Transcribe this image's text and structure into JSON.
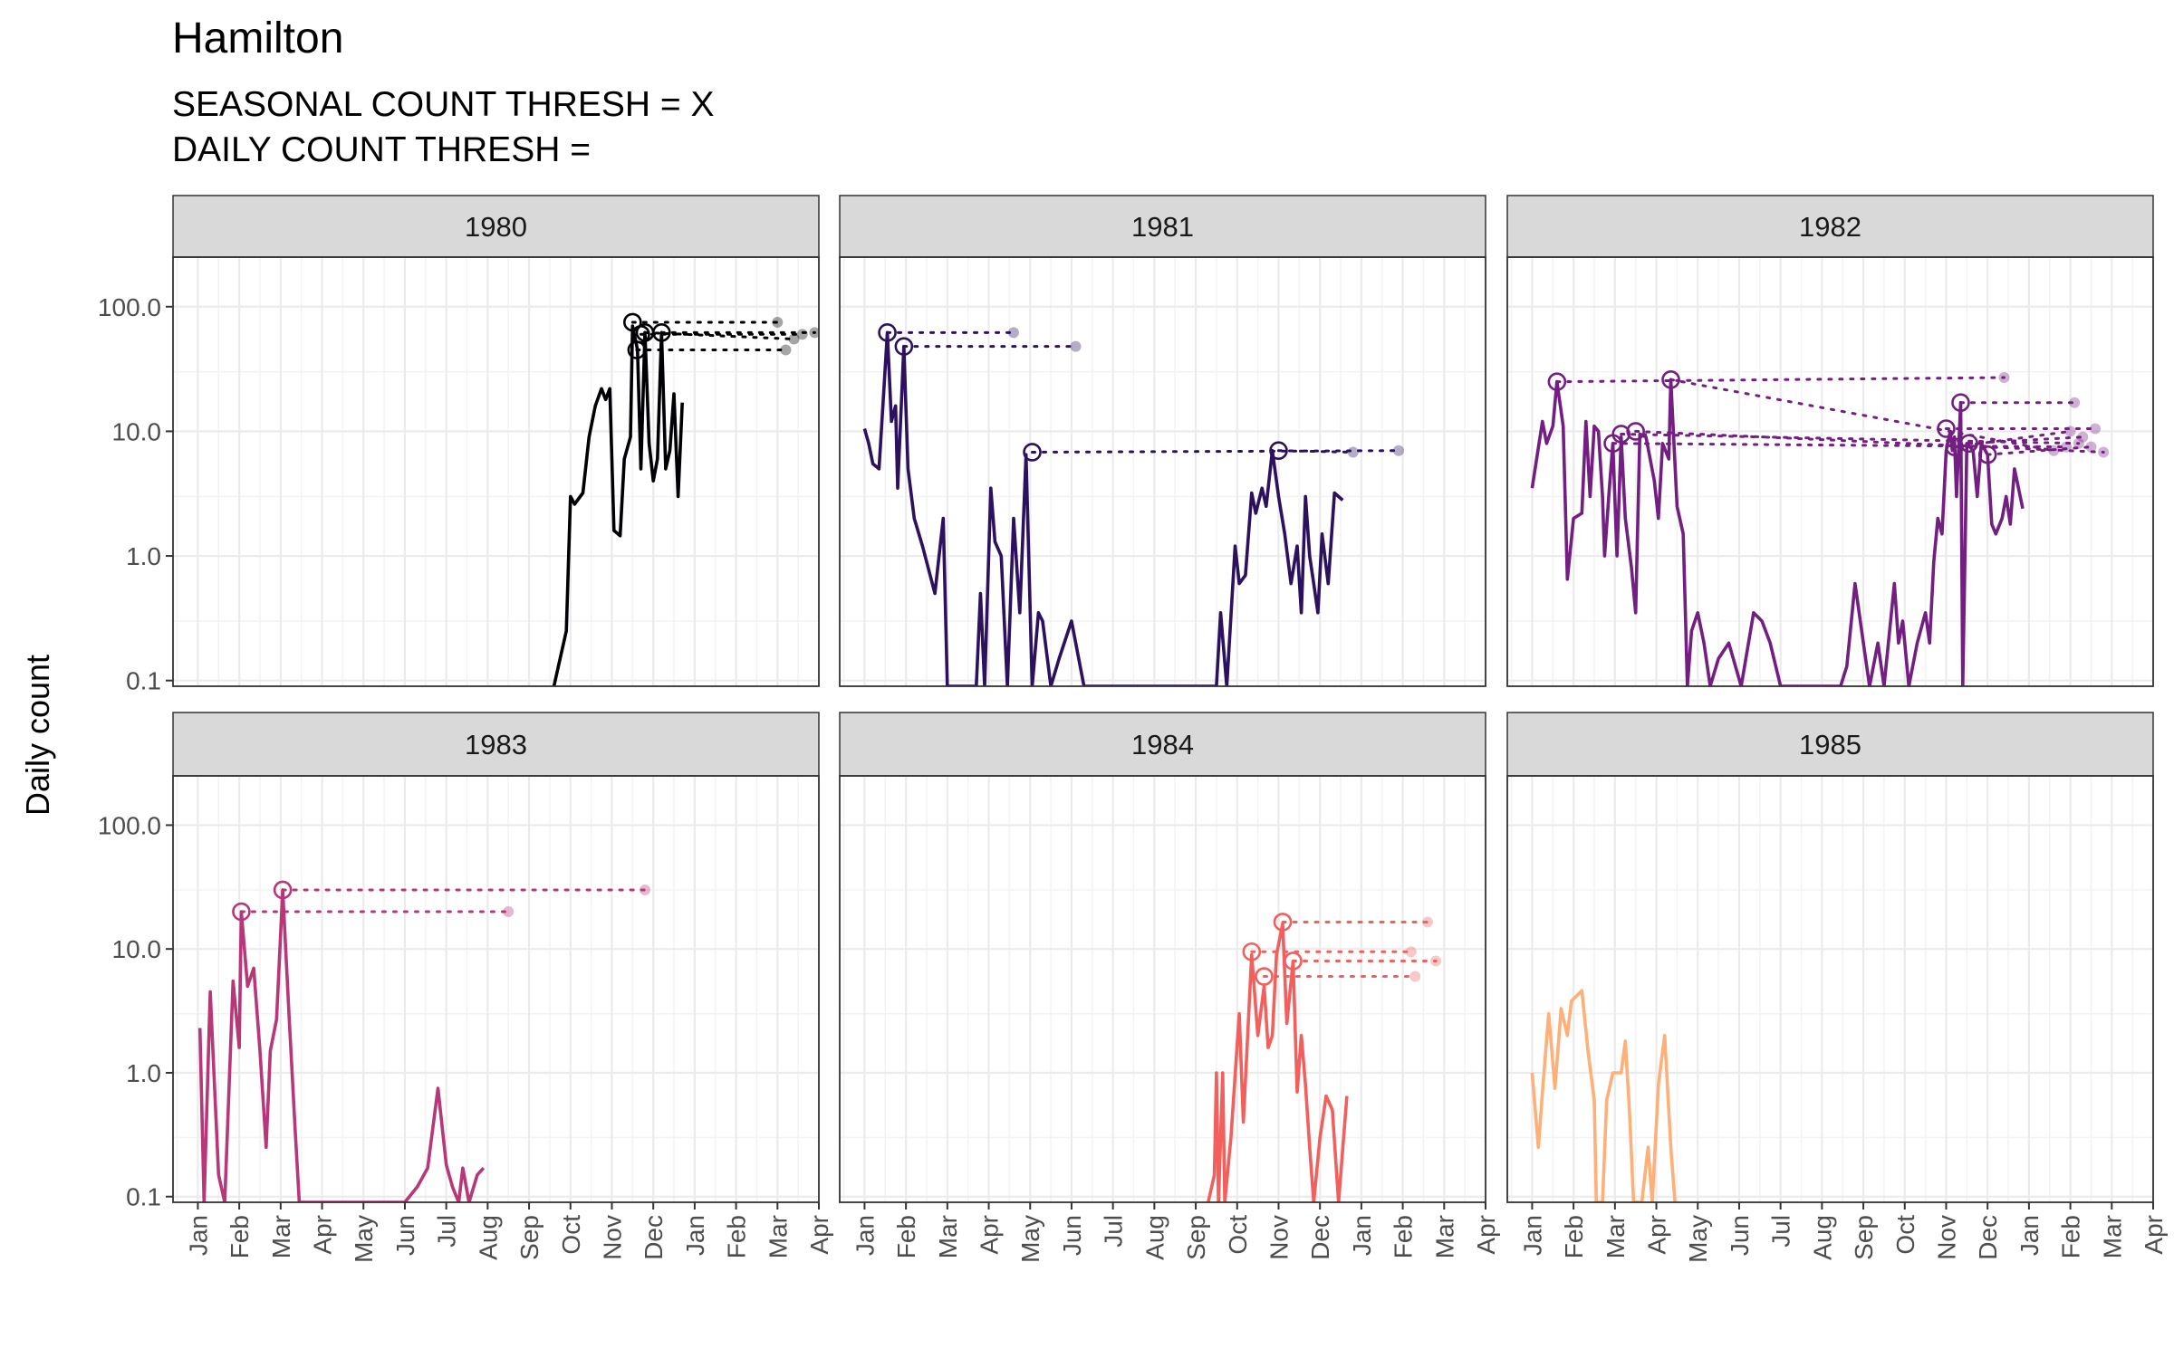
{
  "chart_data": {
    "type": "line",
    "title": "Hamilton",
    "subtitle_lines": [
      "SEASONAL COUNT THRESH = X",
      "DAILY COUNT THRESH ="
    ],
    "ylabel": "Daily count",
    "xlabel": "",
    "y_scale": "log10",
    "ylim": [
      0.09,
      250
    ],
    "y_ticks": [
      0.1,
      1.0,
      10.0,
      100.0
    ],
    "y_tick_labels": [
      "0.1",
      "1.0",
      "10.0",
      "100.0"
    ],
    "x_tick_labels": [
      "Jan",
      "Feb",
      "Mar",
      "Apr",
      "May",
      "Jun",
      "Jul",
      "Aug",
      "Sep",
      "Oct",
      "Nov",
      "Dec",
      "Jan",
      "Feb",
      "Mar",
      "Apr"
    ],
    "x_unit": "month index (0 = Jan 1 of panel year, 15 = Apr 1 of following year)",
    "grid": true,
    "legend": "none",
    "facets": [
      {
        "year": "1980",
        "color": "#000004",
        "series": [
          [
            8.6,
            0.09
          ],
          [
            8.9,
            0.25
          ],
          [
            9.0,
            3.0
          ],
          [
            9.1,
            2.6
          ],
          [
            9.3,
            3.2
          ],
          [
            9.45,
            9.0
          ],
          [
            9.6,
            16
          ],
          [
            9.75,
            22
          ],
          [
            9.85,
            18
          ],
          [
            9.95,
            22
          ],
          [
            10.05,
            1.6
          ],
          [
            10.2,
            1.45
          ],
          [
            10.3,
            6
          ],
          [
            10.45,
            9
          ],
          [
            10.5,
            70
          ],
          [
            10.62,
            45
          ],
          [
            10.7,
            5
          ],
          [
            10.8,
            62
          ],
          [
            10.9,
            8
          ],
          [
            11.0,
            4
          ],
          [
            11.1,
            6
          ],
          [
            11.2,
            62
          ],
          [
            11.3,
            5
          ],
          [
            11.4,
            7
          ],
          [
            11.5,
            20
          ],
          [
            11.6,
            3
          ],
          [
            11.7,
            17
          ]
        ],
        "peaks": [
          [
            10.5,
            75,
            14.0,
            75
          ],
          [
            10.6,
            45,
            14.2,
            45
          ],
          [
            10.8,
            62,
            14.4,
            55
          ],
          [
            11.2,
            62,
            14.9,
            62
          ],
          [
            10.7,
            60,
            14.6,
            60
          ]
        ]
      },
      {
        "year": "1981",
        "color": "#2c115f",
        "series": [
          [
            0.0,
            10.5
          ],
          [
            0.1,
            8
          ],
          [
            0.2,
            5.5
          ],
          [
            0.35,
            5
          ],
          [
            0.55,
            62
          ],
          [
            0.65,
            12
          ],
          [
            0.75,
            16
          ],
          [
            0.8,
            3.5
          ],
          [
            0.95,
            48
          ],
          [
            1.05,
            5
          ],
          [
            1.2,
            2
          ],
          [
            1.4,
            1.2
          ],
          [
            1.7,
            0.5
          ],
          [
            1.9,
            2
          ],
          [
            2.0,
            0.09
          ],
          [
            2.7,
            0.09
          ],
          [
            2.8,
            0.5
          ],
          [
            2.9,
            0.09
          ],
          [
            3.05,
            3.5
          ],
          [
            3.15,
            1.3
          ],
          [
            3.3,
            1.0
          ],
          [
            3.45,
            0.09
          ],
          [
            3.6,
            2
          ],
          [
            3.75,
            0.35
          ],
          [
            3.9,
            6.5
          ],
          [
            4.05,
            0.09
          ],
          [
            4.2,
            0.35
          ],
          [
            4.3,
            0.3
          ],
          [
            4.5,
            0.09
          ],
          [
            4.7,
            0.15
          ],
          [
            5.0,
            0.3
          ],
          [
            5.3,
            0.09
          ],
          [
            8.5,
            0.09
          ],
          [
            8.6,
            0.35
          ],
          [
            8.75,
            0.09
          ],
          [
            8.95,
            1.2
          ],
          [
            9.05,
            0.6
          ],
          [
            9.2,
            0.7
          ],
          [
            9.35,
            3.2
          ],
          [
            9.45,
            2.2
          ],
          [
            9.6,
            3.5
          ],
          [
            9.7,
            2.5
          ],
          [
            9.85,
            7
          ],
          [
            10.0,
            3
          ],
          [
            10.15,
            1.5
          ],
          [
            10.3,
            0.6
          ],
          [
            10.45,
            1.2
          ],
          [
            10.55,
            0.35
          ],
          [
            10.65,
            3
          ],
          [
            10.75,
            1
          ],
          [
            10.85,
            0.6
          ],
          [
            10.95,
            0.35
          ],
          [
            11.05,
            1.5
          ],
          [
            11.2,
            0.6
          ],
          [
            11.35,
            3.2
          ],
          [
            11.55,
            2.8
          ]
        ],
        "peaks": [
          [
            0.55,
            62,
            3.6,
            62
          ],
          [
            0.95,
            48,
            5.1,
            48
          ],
          [
            4.05,
            6.8,
            12.9,
            7.0
          ],
          [
            10.0,
            7.0,
            11.8,
            6.8
          ]
        ]
      },
      {
        "year": "1982",
        "color": "#721f81",
        "series": [
          [
            0.0,
            3.5
          ],
          [
            0.25,
            12
          ],
          [
            0.35,
            8
          ],
          [
            0.5,
            11
          ],
          [
            0.6,
            25
          ],
          [
            0.75,
            11
          ],
          [
            0.85,
            0.65
          ],
          [
            1.0,
            2
          ],
          [
            1.2,
            2.2
          ],
          [
            1.3,
            12
          ],
          [
            1.4,
            3
          ],
          [
            1.5,
            11
          ],
          [
            1.6,
            10
          ],
          [
            1.7,
            3
          ],
          [
            1.75,
            1
          ],
          [
            1.85,
            3
          ],
          [
            1.95,
            8
          ],
          [
            2.05,
            1
          ],
          [
            2.15,
            9
          ],
          [
            2.25,
            2
          ],
          [
            2.4,
            0.8
          ],
          [
            2.5,
            0.35
          ],
          [
            2.6,
            9.5
          ],
          [
            2.75,
            9
          ],
          [
            2.95,
            4
          ],
          [
            3.05,
            2
          ],
          [
            3.15,
            8
          ],
          [
            3.3,
            6
          ],
          [
            3.35,
            26
          ],
          [
            3.5,
            2.5
          ],
          [
            3.65,
            1.5
          ],
          [
            3.75,
            0.09
          ],
          [
            3.85,
            0.25
          ],
          [
            4.0,
            0.35
          ],
          [
            4.15,
            0.2
          ],
          [
            4.3,
            0.09
          ],
          [
            4.5,
            0.15
          ],
          [
            4.75,
            0.2
          ],
          [
            5.05,
            0.09
          ],
          [
            5.35,
            0.35
          ],
          [
            5.55,
            0.3
          ],
          [
            5.75,
            0.2
          ],
          [
            6.0,
            0.09
          ],
          [
            7.45,
            0.09
          ],
          [
            7.6,
            0.13
          ],
          [
            7.8,
            0.6
          ],
          [
            8.0,
            0.2
          ],
          [
            8.15,
            0.09
          ],
          [
            8.35,
            0.2
          ],
          [
            8.5,
            0.09
          ],
          [
            8.75,
            0.6
          ],
          [
            8.85,
            0.2
          ],
          [
            8.95,
            0.3
          ],
          [
            9.1,
            0.09
          ],
          [
            9.3,
            0.2
          ],
          [
            9.5,
            0.35
          ],
          [
            9.6,
            0.2
          ],
          [
            9.7,
            0.9
          ],
          [
            9.8,
            2
          ],
          [
            9.9,
            1.5
          ],
          [
            10.0,
            7
          ],
          [
            10.1,
            10
          ],
          [
            10.15,
            7
          ],
          [
            10.2,
            9
          ],
          [
            10.25,
            3
          ],
          [
            10.35,
            17
          ],
          [
            10.4,
            0.09
          ],
          [
            10.5,
            8
          ],
          [
            10.65,
            7
          ],
          [
            10.75,
            3
          ],
          [
            10.85,
            8
          ],
          [
            11.0,
            6.5
          ],
          [
            11.1,
            1.8
          ],
          [
            11.2,
            1.5
          ],
          [
            11.35,
            2
          ],
          [
            11.45,
            3
          ],
          [
            11.55,
            1.8
          ],
          [
            11.65,
            5
          ],
          [
            11.85,
            2.4
          ]
        ],
        "peaks": [
          [
            0.6,
            25,
            11.4,
            27
          ],
          [
            1.95,
            8,
            12.9,
            7.5
          ],
          [
            2.15,
            9.5,
            13.2,
            8
          ],
          [
            2.5,
            10,
            13.8,
            6.8
          ],
          [
            3.35,
            26,
            12.6,
            7
          ],
          [
            10.0,
            10.5,
            13.6,
            10.5
          ],
          [
            10.2,
            7.5,
            13.0,
            10
          ],
          [
            10.35,
            17,
            13.1,
            17
          ],
          [
            10.55,
            8,
            13.3,
            9
          ],
          [
            11.0,
            6.5,
            13.5,
            7.5
          ]
        ]
      },
      {
        "year": "1983",
        "color": "#b73779",
        "series": [
          [
            0.05,
            2.3
          ],
          [
            0.15,
            0.09
          ],
          [
            0.3,
            4.5
          ],
          [
            0.5,
            0.15
          ],
          [
            0.65,
            0.09
          ],
          [
            0.85,
            5.5
          ],
          [
            1.0,
            1.6
          ],
          [
            1.05,
            20
          ],
          [
            1.2,
            5
          ],
          [
            1.35,
            7
          ],
          [
            1.5,
            1.5
          ],
          [
            1.65,
            0.25
          ],
          [
            1.75,
            1.5
          ],
          [
            1.9,
            2.7
          ],
          [
            2.05,
            30
          ],
          [
            2.2,
            3
          ],
          [
            2.35,
            0.35
          ],
          [
            2.45,
            0.09
          ],
          [
            5.0,
            0.09
          ],
          [
            5.3,
            0.12
          ],
          [
            5.55,
            0.17
          ],
          [
            5.8,
            0.75
          ],
          [
            6.0,
            0.18
          ],
          [
            6.15,
            0.12
          ],
          [
            6.3,
            0.09
          ],
          [
            6.4,
            0.17
          ],
          [
            6.55,
            0.09
          ],
          [
            6.75,
            0.15
          ],
          [
            6.9,
            0.17
          ]
        ],
        "peaks": [
          [
            1.05,
            20,
            7.5,
            20
          ],
          [
            2.05,
            30,
            10.8,
            30
          ]
        ]
      },
      {
        "year": "1984",
        "color": "#f1605d",
        "series": [
          [
            8.3,
            0.09
          ],
          [
            8.45,
            0.15
          ],
          [
            8.5,
            1
          ],
          [
            8.55,
            0.09
          ],
          [
            8.65,
            1
          ],
          [
            8.7,
            0.09
          ],
          [
            8.85,
            0.3
          ],
          [
            9.05,
            3
          ],
          [
            9.15,
            0.4
          ],
          [
            9.35,
            9
          ],
          [
            9.5,
            2
          ],
          [
            9.65,
            5
          ],
          [
            9.75,
            1.6
          ],
          [
            9.85,
            2
          ],
          [
            9.95,
            9
          ],
          [
            10.1,
            16
          ],
          [
            10.2,
            2.5
          ],
          [
            10.35,
            8
          ],
          [
            10.45,
            0.7
          ],
          [
            10.55,
            2
          ],
          [
            10.65,
            0.8
          ],
          [
            10.75,
            0.25
          ],
          [
            10.85,
            0.09
          ],
          [
            11.0,
            0.3
          ],
          [
            11.15,
            0.65
          ],
          [
            11.3,
            0.5
          ],
          [
            11.45,
            0.09
          ],
          [
            11.65,
            0.65
          ]
        ],
        "peaks": [
          [
            9.35,
            9.5,
            13.2,
            9.5
          ],
          [
            9.65,
            6,
            13.3,
            6
          ],
          [
            10.1,
            16.5,
            13.6,
            16.5
          ],
          [
            10.35,
            8,
            13.8,
            8
          ]
        ]
      },
      {
        "year": "1985",
        "color": "#feb078",
        "series": [
          [
            0.0,
            1
          ],
          [
            0.15,
            0.25
          ],
          [
            0.25,
            0.7
          ],
          [
            0.4,
            3
          ],
          [
            0.55,
            0.75
          ],
          [
            0.7,
            3.3
          ],
          [
            0.85,
            2
          ],
          [
            0.95,
            3.8
          ],
          [
            1.2,
            4.6
          ],
          [
            1.35,
            1.5
          ],
          [
            1.5,
            0.6
          ],
          [
            1.55,
            0.09
          ],
          [
            1.7,
            0.09
          ],
          [
            1.8,
            0.6
          ],
          [
            1.95,
            1.0
          ],
          [
            2.15,
            1.0
          ],
          [
            2.25,
            1.8
          ],
          [
            2.35,
            0.5
          ],
          [
            2.45,
            0.09
          ],
          [
            2.65,
            0.09
          ],
          [
            2.8,
            0.25
          ],
          [
            2.9,
            0.09
          ],
          [
            3.05,
            0.8
          ],
          [
            3.2,
            2
          ],
          [
            3.35,
            0.25
          ],
          [
            3.45,
            0.09
          ]
        ],
        "peaks": []
      }
    ]
  }
}
